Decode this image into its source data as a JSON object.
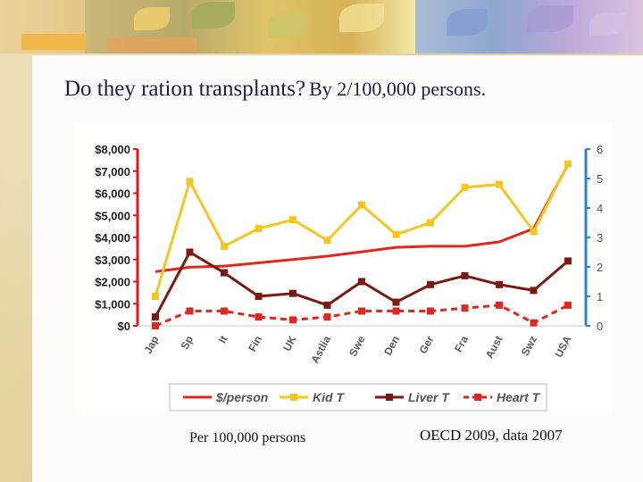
{
  "slide": {
    "title_main": "Do they ration transplants?",
    "title_sub": "By 2/100,000 persons.",
    "caption_left": "Per 100,000 persons",
    "caption_right": "OECD 2009, data 2007"
  },
  "chart_data": {
    "type": "line",
    "categories": [
      "Jap",
      "Sp",
      "It",
      "Fin",
      "UK",
      "Astlia",
      "Swe",
      "Den",
      "Ger",
      "Fra",
      "Aust",
      "Swz",
      "USA"
    ],
    "left_axis": {
      "ticks": [
        "$0",
        "$1,000",
        "$2,000",
        "$3,000",
        "$4,000",
        "$5,000",
        "$6,000",
        "$7,000",
        "$8,000"
      ],
      "ylim": [
        0,
        8000
      ],
      "color": "#e8141c"
    },
    "right_axis": {
      "ticks": [
        "0",
        "1",
        "2",
        "3",
        "4",
        "5",
        "6"
      ],
      "ylim": [
        0,
        6
      ],
      "color": "#2e7fd6"
    },
    "series": [
      {
        "name": "$/person",
        "axis": "left",
        "color": "#e0281e",
        "dash": "solid",
        "marker": "none",
        "values": [
          2450,
          2650,
          2700,
          2850,
          3000,
          3150,
          3350,
          3550,
          3600,
          3600,
          3800,
          4400,
          7300
        ]
      },
      {
        "name": "Kid T",
        "axis": "right",
        "color": "#f7c520",
        "dash": "solid",
        "marker": "square",
        "values": [
          1.0,
          4.9,
          2.7,
          3.3,
          3.6,
          2.9,
          4.1,
          3.1,
          3.5,
          4.7,
          4.8,
          3.2,
          5.5
        ]
      },
      {
        "name": "Liver T",
        "axis": "right",
        "color": "#7a1a10",
        "dash": "solid",
        "marker": "square",
        "values": [
          0.3,
          2.5,
          1.8,
          1.0,
          1.1,
          0.7,
          1.5,
          0.8,
          1.4,
          1.7,
          1.4,
          1.2,
          2.2
        ]
      },
      {
        "name": "Heart T",
        "axis": "right",
        "color": "#e0281e",
        "dash": "dashed",
        "marker": "square",
        "values": [
          0.0,
          0.5,
          0.5,
          0.3,
          0.2,
          0.3,
          0.5,
          0.5,
          0.5,
          0.6,
          0.7,
          0.1,
          0.7
        ]
      }
    ],
    "legend": {
      "position": "bottom",
      "entries": [
        "$/person",
        "Kid T",
        "Liver T",
        "Heart T"
      ]
    },
    "grid": false
  }
}
